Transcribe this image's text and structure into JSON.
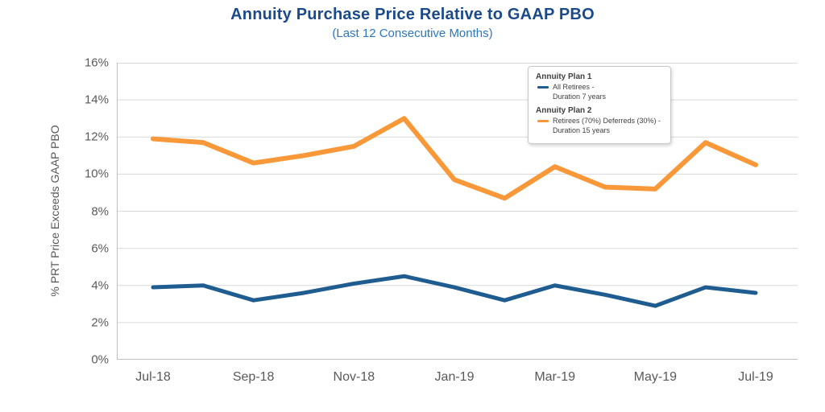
{
  "title": "Annuity Purchase Price Relative to GAAP PBO",
  "subtitle": "(Last 12 Consecutive Months)",
  "chart_data": {
    "type": "line",
    "x": [
      "Jul-18",
      "Aug-18",
      "Sep-18",
      "Oct-18",
      "Nov-18",
      "Dec-18",
      "Jan-19",
      "Feb-19",
      "Mar-19",
      "Apr-19",
      "May-19",
      "Jun-19",
      "Jul-19"
    ],
    "x_tick_labels": [
      "Jul-18",
      "Sep-18",
      "Nov-18",
      "Jan-19",
      "Mar-19",
      "May-19",
      "Jul-19"
    ],
    "x_tick_indices": [
      0,
      2,
      4,
      6,
      8,
      10,
      12
    ],
    "ylabel": "% PRT Price Exceeds GAAP PBO",
    "ylim": [
      0,
      16
    ],
    "ytick_values": [
      0,
      2,
      4,
      6,
      8,
      10,
      12,
      14,
      16
    ],
    "ytick_labels": [
      "0%",
      "2%",
      "4%",
      "6%",
      "8%",
      "10%",
      "12%",
      "14%",
      "16%"
    ],
    "grid": true,
    "legend_position": "top-right",
    "series": [
      {
        "name": "Annuity Plan 1",
        "legend_label": "All Retirees -\nDuration 7 years",
        "color": "#1F5C8F",
        "stroke_width": 5,
        "values": [
          3.9,
          4.0,
          3.2,
          3.6,
          4.1,
          4.5,
          3.9,
          3.2,
          4.0,
          3.5,
          2.9,
          3.9,
          3.6
        ]
      },
      {
        "name": "Annuity Plan 2",
        "legend_label": "Retirees (70%) Deferreds (30%) -\nDuration 15 years",
        "color": "#F89838",
        "stroke_width": 6,
        "values": [
          11.9,
          11.7,
          10.6,
          11.0,
          11.5,
          13.0,
          9.7,
          8.7,
          10.4,
          9.3,
          9.2,
          11.7,
          10.5
        ]
      }
    ],
    "colors": {
      "title": "#1B4A8A",
      "subtitle": "#2E77BE",
      "gridline": "#D9D9D9",
      "axis": "#C0C0C0",
      "tick_text": "#595959"
    }
  }
}
